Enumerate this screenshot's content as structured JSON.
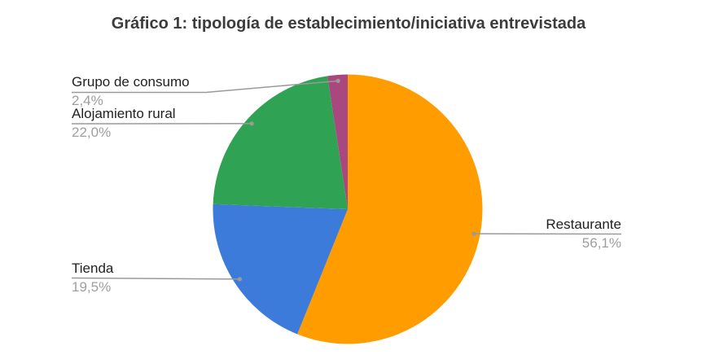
{
  "chart_data": {
    "type": "pie",
    "title": "Gráfico 1: tipología de establecimiento/iniciativa entrevistada",
    "unit": "percent",
    "direction": "clockwise",
    "start_angle_deg": 0,
    "background": "#ffffff",
    "title_color": "#3c3c3c",
    "label_color": "#212121",
    "value_color": "#9e9e9e",
    "leader_color": "#9a9a9a",
    "legend_position": "labeled",
    "slices": [
      {
        "label": "Restaurante",
        "value": 56.1,
        "display_value": "56,1%",
        "color": "#ff9c00"
      },
      {
        "label": "Tienda",
        "value": 19.5,
        "display_value": "19,5%",
        "color": "#3d7bdb"
      },
      {
        "label": "Alojamiento rural",
        "value": 22.0,
        "display_value": "22,0%",
        "color": "#2fa254"
      },
      {
        "label": "Grupo de consumo",
        "value": 2.4,
        "display_value": "2,4%",
        "color": "#a8487e"
      }
    ]
  }
}
